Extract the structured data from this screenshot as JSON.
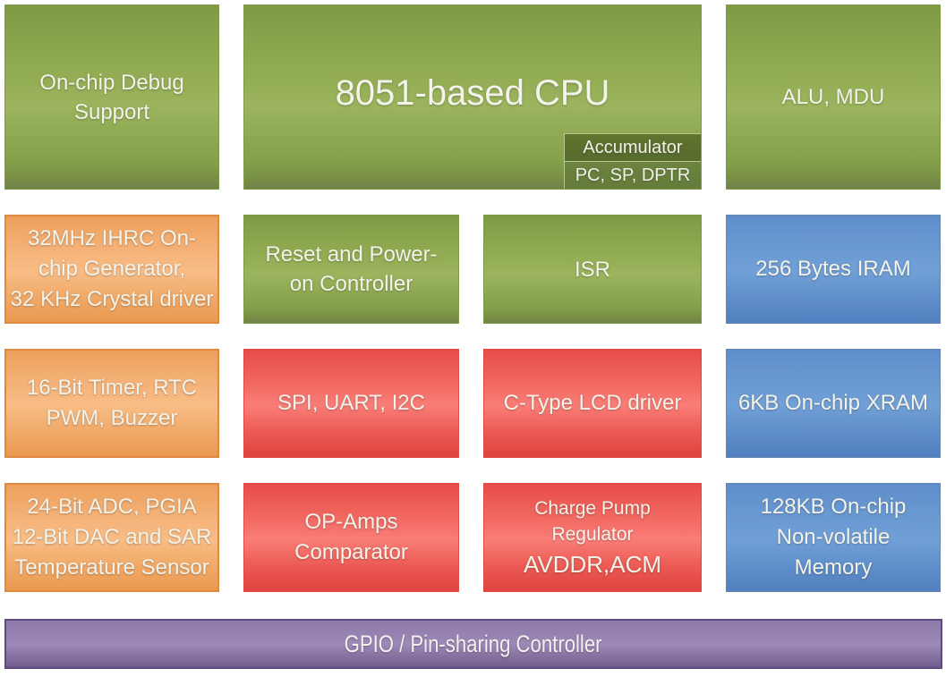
{
  "palette": {
    "green_block": "#8BA74F",
    "green_sub_box_dark": "#5C7034",
    "green_sub_box_light": "#6D8540",
    "orange_block": "#F2AC6D",
    "orange_border": "#E18A3F",
    "red_block": "#F2615C",
    "blue_block": "#6694D1",
    "purple_bar": "#8E7AAB",
    "purple_border": "#5E4B7C",
    "text": "#F3F3EA"
  },
  "blocks": {
    "debug": {
      "label": "On-chip Debug\nSupport"
    },
    "cpu": {
      "label": "8051-based CPU",
      "accumulator": "Accumulator",
      "registers": "PC, SP, DPTR"
    },
    "alu": {
      "label": "ALU, MDU"
    },
    "clock": {
      "label": "32MHz IHRC On-\nchip Generator,\n32 KHz Crystal driver"
    },
    "reset": {
      "label": "Reset and Power-\non Controller"
    },
    "isr": {
      "label": "ISR"
    },
    "iram": {
      "label": "256 Bytes IRAM"
    },
    "timer": {
      "label": "16-Bit Timer, RTC\nPWM, Buzzer"
    },
    "serial": {
      "label": "SPI, UART, I2C"
    },
    "lcd": {
      "label": "C-Type LCD driver"
    },
    "xram": {
      "label": "6KB On-chip XRAM"
    },
    "analog": {
      "label": "24-Bit ADC, PGIA\n12-Bit DAC and SAR\nTemperature Sensor"
    },
    "opamp": {
      "label": "OP-Amps\nComparator"
    },
    "charge_pump": {
      "label": "Charge Pump\nRegulator",
      "sub_label": "AVDDR,ACM"
    },
    "nvm": {
      "label": "128KB On-chip\nNon-volatile\nMemory"
    },
    "gpio": {
      "label": "GPIO / Pin-sharing Controller"
    }
  }
}
